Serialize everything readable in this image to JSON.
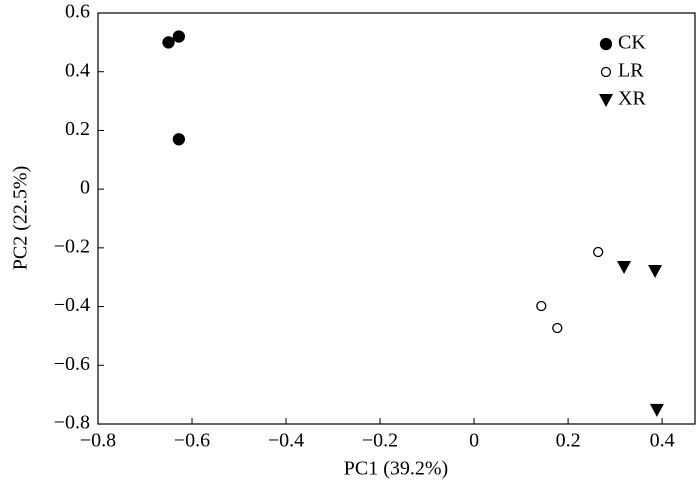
{
  "chart_data": {
    "type": "scatter",
    "x_label": "PC1 (39.2%)",
    "y_label": "PC2 (22.5%)",
    "xlim": [
      -0.8,
      0.47
    ],
    "ylim": [
      -0.8,
      0.6
    ],
    "xticks": [
      {
        "value": -0.8,
        "label": "−0.8"
      },
      {
        "value": -0.6,
        "label": "−0.6"
      },
      {
        "value": -0.4,
        "label": "−0.4"
      },
      {
        "value": -0.2,
        "label": "−0.2"
      },
      0,
      0.2,
      0.4
    ],
    "yticks": [
      0.6,
      0.4,
      0.2,
      0,
      {
        "value": -0.2,
        "label": "−0.2"
      },
      {
        "value": -0.4,
        "label": "−0.4"
      },
      {
        "value": -0.6,
        "label": "−0.6"
      },
      {
        "value": -0.8,
        "label": "−0.8"
      }
    ],
    "legend": "top-right",
    "series": [
      {
        "name": "CK",
        "color": "#000000",
        "marker": "circle-filled",
        "x": [
          -0.65,
          -0.628,
          -0.628
        ],
        "y": [
          0.5,
          0.52,
          0.17
        ]
      },
      {
        "name": "LR",
        "color": "#000000",
        "marker": "circle-open",
        "x": [
          0.264,
          0.143,
          0.177
        ],
        "y": [
          -0.214,
          -0.398,
          -0.473
        ]
      },
      {
        "name": "XR",
        "color": "#000000",
        "marker": "triangle-down",
        "x": [
          0.319,
          0.385,
          0.389
        ],
        "y": [
          -0.265,
          -0.279,
          -0.752
        ]
      }
    ]
  }
}
